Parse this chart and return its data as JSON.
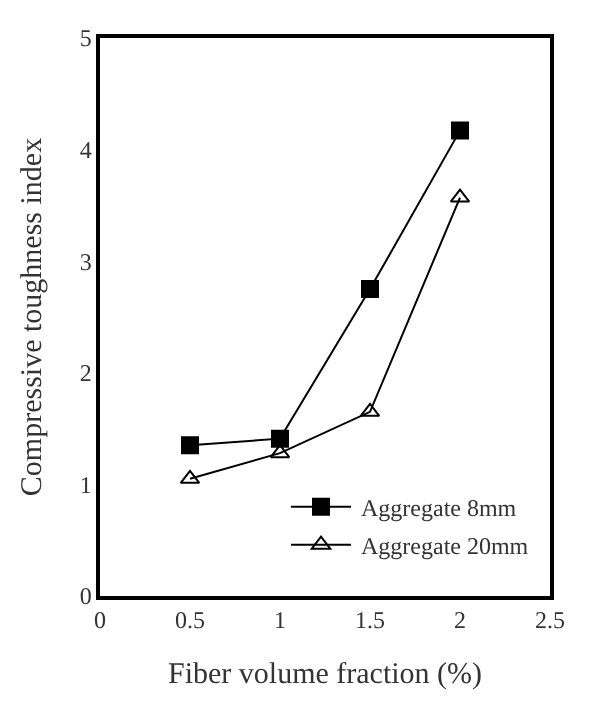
{
  "chart_data": {
    "type": "line",
    "xlabel": "Fiber volume fraction (%)",
    "ylabel": "Compressive toughness index",
    "x": [
      0.5,
      1,
      1.5,
      2
    ],
    "series": [
      {
        "name": "Aggregate 8mm",
        "color": "#000000",
        "marker": "square",
        "values": [
          1.35,
          1.41,
          2.75,
          4.17
        ]
      },
      {
        "name": "Aggregate 20mm",
        "color": "#000000",
        "marker": "triangle",
        "values": [
          1.05,
          1.28,
          1.65,
          3.57
        ]
      }
    ],
    "xlim": [
      0,
      2.5
    ],
    "xticks": [
      0,
      0.5,
      1,
      1.5,
      2,
      2.5
    ],
    "ylim": [
      0,
      5
    ],
    "yticks": [
      0,
      1,
      2,
      3,
      4,
      5
    ],
    "legend": "bottom right",
    "line_style": "solid"
  }
}
